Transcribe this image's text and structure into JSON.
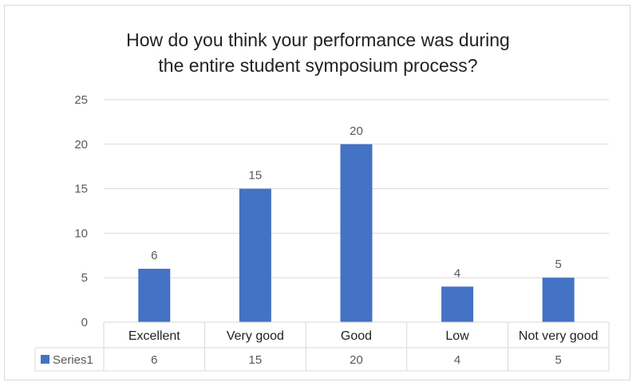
{
  "chart_data": {
    "type": "bar",
    "title_lines": [
      "How do you think your performance was during",
      "the entire student symposium process?"
    ],
    "categories": [
      "Excellent",
      "Very good",
      "Good",
      "Low",
      "Not very good"
    ],
    "series": [
      {
        "name": "Series1",
        "values": [
          6,
          15,
          20,
          4,
          5
        ]
      }
    ],
    "y_ticks": [
      "0",
      "5",
      "10",
      "15",
      "20",
      "25"
    ],
    "ylim": [
      0,
      25
    ],
    "grid": true,
    "legend": "data-table",
    "data_table": true,
    "colors": {
      "bar": "#4472c4",
      "grid": "#d9d9d9",
      "text": "#595959"
    }
  }
}
